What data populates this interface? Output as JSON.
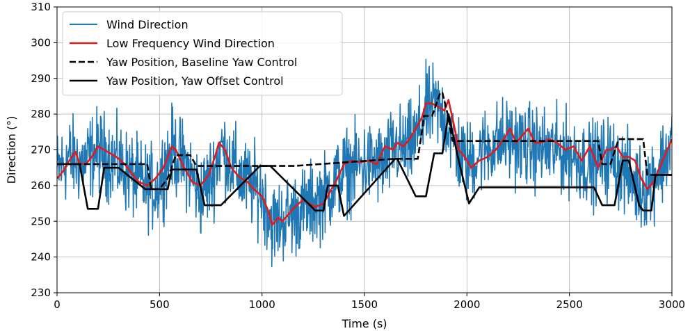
{
  "chart_data": {
    "type": "line",
    "xlabel": "Time (s)",
    "ylabel": "Direction (°)",
    "xlim": [
      0,
      3000
    ],
    "ylim": [
      230,
      310
    ],
    "x_ticks": [
      0,
      500,
      1000,
      1500,
      2000,
      2500,
      3000
    ],
    "y_ticks": [
      230,
      240,
      250,
      260,
      270,
      280,
      290,
      300,
      310
    ],
    "grid": true,
    "legend_position": "top-left",
    "series": [
      {
        "name": "Wind Direction",
        "color": "#1f77b4",
        "style": "solid",
        "noise_amplitude": 11,
        "x": [
          0,
          60,
          120,
          200,
          300,
          400,
          480,
          560,
          640,
          700,
          760,
          800,
          900,
          1000,
          1050,
          1150,
          1250,
          1300,
          1400,
          1500,
          1600,
          1650,
          1700,
          1750,
          1800,
          1850,
          1900,
          1950,
          2000,
          2100,
          2200,
          2300,
          2400,
          2500,
          2600,
          2700,
          2800,
          2850,
          2900,
          2950,
          3000
        ],
        "y": [
          264,
          268,
          266,
          270,
          266,
          261,
          259,
          270,
          265,
          257,
          263,
          271,
          262,
          258,
          249,
          252,
          255,
          257,
          264,
          266,
          266,
          271,
          270,
          273,
          281,
          282,
          278,
          270,
          266,
          271,
          273,
          271,
          270,
          269,
          266,
          268,
          262,
          259,
          262,
          266,
          272
        ]
      },
      {
        "name": "Low Frequency Wind Direction",
        "color": "#e31a1c",
        "style": "solid",
        "x": [
          0,
          30,
          60,
          90,
          110,
          140,
          170,
          200,
          230,
          260,
          290,
          330,
          370,
          400,
          440,
          480,
          520,
          560,
          580,
          620,
          660,
          700,
          740,
          770,
          790,
          820,
          850,
          880,
          900,
          930,
          960,
          1000,
          1030,
          1050,
          1080,
          1100,
          1130,
          1160,
          1200,
          1230,
          1260,
          1300,
          1330,
          1360,
          1400,
          1440,
          1480,
          1520,
          1560,
          1600,
          1640,
          1660,
          1690,
          1720,
          1750,
          1780,
          1800,
          1830,
          1860,
          1890,
          1910,
          1940,
          1960,
          1990,
          2020,
          2060,
          2100,
          2140,
          2180,
          2210,
          2240,
          2270,
          2300,
          2330,
          2360,
          2400,
          2440,
          2480,
          2520,
          2560,
          2600,
          2640,
          2680,
          2700,
          2730,
          2760,
          2790,
          2820,
          2850,
          2880,
          2910,
          2940,
          2970,
          3000
        ],
        "y": [
          262,
          264,
          267,
          269.5,
          266,
          266,
          268,
          271,
          270,
          269,
          268,
          266,
          263,
          261,
          260,
          262,
          265,
          271,
          270,
          265,
          261,
          260,
          263,
          268,
          272,
          270,
          265,
          263,
          262,
          261,
          259,
          257,
          253,
          249,
          251,
          250,
          252,
          254,
          256,
          255,
          254,
          255,
          258,
          261,
          266,
          267,
          266.5,
          267,
          266,
          271,
          270,
          272,
          271,
          273,
          276,
          279,
          283,
          283,
          282,
          281,
          284,
          276,
          270,
          268,
          265,
          267,
          268,
          270,
          273,
          276,
          272,
          274,
          276,
          272,
          272,
          273,
          272,
          270,
          271,
          267,
          271,
          265,
          270,
          270,
          271,
          268,
          268,
          267,
          262,
          259,
          261,
          265,
          269,
          273
        ]
      },
      {
        "name": "Yaw Position, Baseline Yaw Control",
        "color": "#000000",
        "style": "dashed",
        "x": [
          0,
          440,
          460,
          500,
          540,
          580,
          650,
          680,
          900,
          1000,
          1160,
          1650,
          1700,
          1760,
          1780,
          1790,
          1830,
          1870,
          1880,
          1910,
          1930,
          1960,
          2640,
          2660,
          2700,
          2740,
          2790,
          2860,
          2880,
          3000
        ],
        "y": [
          266,
          266,
          259,
          259,
          262,
          268.5,
          268.5,
          265.5,
          265.5,
          265.5,
          265.5,
          267.5,
          267.5,
          267.5,
          275,
          279.5,
          279.5,
          286,
          286,
          279,
          272.5,
          272.5,
          272.5,
          266,
          266,
          273,
          273,
          273,
          263,
          263
        ]
      },
      {
        "name": "Yaw Position, Yaw Offset Control",
        "color": "#000000",
        "style": "solid",
        "x": [
          0,
          110,
          150,
          200,
          230,
          300,
          430,
          440,
          540,
          560,
          680,
          720,
          800,
          990,
          1040,
          1260,
          1300,
          1320,
          1330,
          1370,
          1400,
          1650,
          1660,
          1750,
          1800,
          1840,
          1880,
          1910,
          1960,
          2010,
          2060,
          2430,
          2620,
          2660,
          2700,
          2720,
          2760,
          2790,
          2840,
          2860,
          2900,
          2920,
          3000
        ],
        "y": [
          266,
          266,
          253.5,
          253.5,
          265,
          265,
          259,
          259,
          259,
          264.5,
          264.5,
          254.5,
          254.5,
          265.5,
          265.5,
          253,
          253,
          260,
          260,
          260,
          251.5,
          267.5,
          267.5,
          257,
          257,
          269,
          269,
          280,
          267,
          255,
          259.5,
          259.5,
          259.5,
          254.5,
          254.5,
          254.5,
          267,
          267,
          254.5,
          253,
          253,
          263,
          263
        ]
      }
    ]
  }
}
